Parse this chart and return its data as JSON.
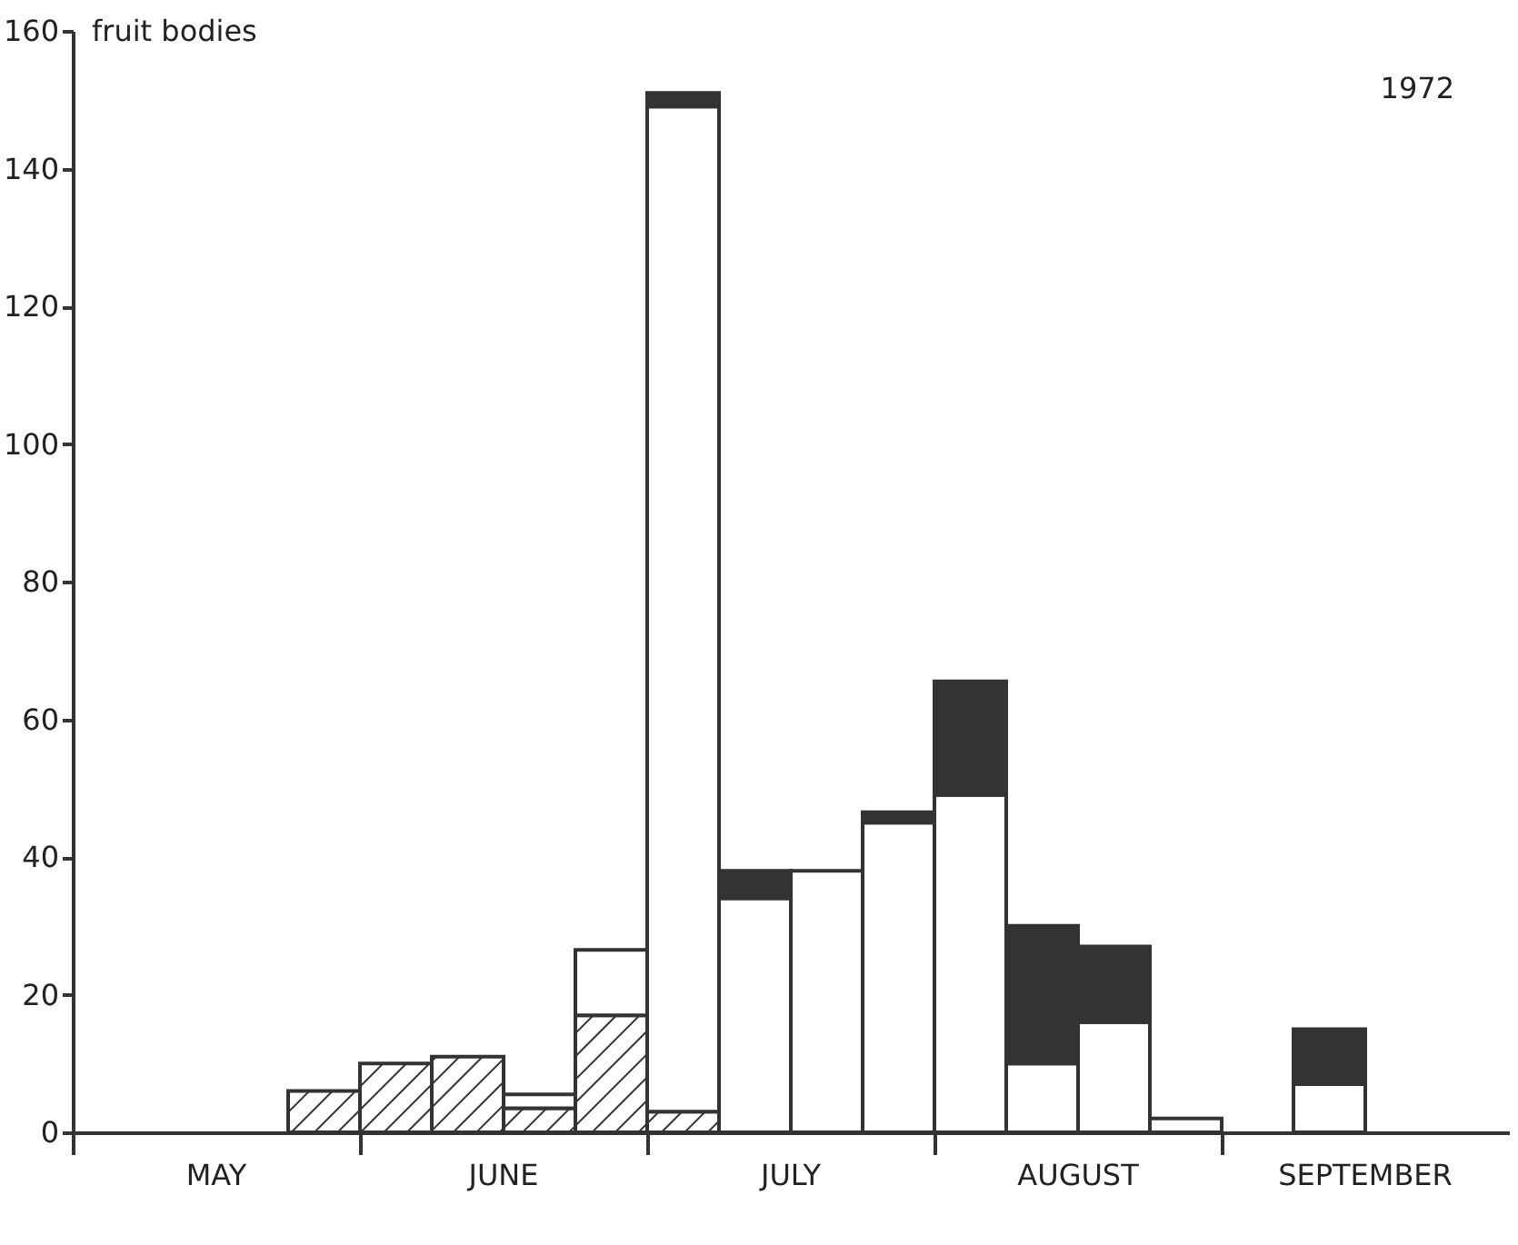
{
  "chart_data": {
    "type": "bar",
    "stacked": true,
    "ylabel": "fruit bodies",
    "annotations": [
      "1972",
      "MAY",
      "JUNE",
      "JULY",
      "AUGUST",
      "SEPTEMBER"
    ],
    "categories": [
      null,
      null,
      null,
      null,
      null,
      null,
      null,
      null,
      null,
      null,
      null,
      null,
      null,
      null,
      null,
      null,
      null,
      null,
      null,
      null
    ],
    "series": [
      {
        "color": "#333333",
        "values": [
          null,
          null,
          null,
          6,
          10,
          11,
          3.5,
          17,
          3,
          null,
          null,
          null,
          null,
          null,
          null,
          null,
          null,
          null,
          null,
          null
        ]
      },
      {
        "color": "#ffffff",
        "values": [
          null,
          null,
          null,
          null,
          null,
          null,
          2,
          9.5,
          146,
          34,
          38,
          45,
          49,
          10,
          16,
          2,
          null,
          7,
          null,
          null
        ]
      },
      {
        "color": "#333333",
        "values": [
          null,
          null,
          null,
          null,
          null,
          null,
          null,
          null,
          2,
          4,
          null,
          1.5,
          16.5,
          20,
          11,
          null,
          null,
          8,
          null,
          null
        ]
      }
    ],
    "ylim": [
      0,
      160
    ],
    "yticks": [
      0,
      20,
      40,
      60,
      80,
      100,
      120,
      140,
      160
    ],
    "grid": false
  }
}
